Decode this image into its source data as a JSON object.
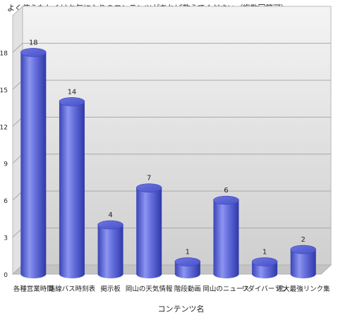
{
  "chart_data": {
    "type": "bar",
    "title": "よく使うもしくはお気に入りのコンテンツがあれば教えてください（複数回答可）",
    "xlabel": "コンテンツ名",
    "ylabel": "",
    "ylim": [
      0,
      21
    ],
    "yticks": [
      "0",
      "3",
      "6",
      "9",
      "12",
      "15",
      "18"
    ],
    "grid": true,
    "categories": [
      "各種営業時間",
      "路線バス時刻表",
      "掲示板",
      "岡山の天気情報",
      "階段動画",
      "岡山のニュース",
      "リダイバーソン",
      "理大最強リンク集"
    ],
    "category_labels": [
      "各種営業時間",
      "路線バス時刻表",
      "掲示板",
      "岡山の天気情報",
      "階段動画",
      "岡山のニュース",
      "リダイバーソン",
      "理大最強リンク集"
    ],
    "values": [
      18,
      14,
      4,
      7,
      1,
      6,
      1,
      2
    ],
    "value_labels": [
      "18",
      "14",
      "4",
      "7",
      "1",
      "6",
      "1",
      "2"
    ],
    "bar_color": "#5a64d8"
  }
}
